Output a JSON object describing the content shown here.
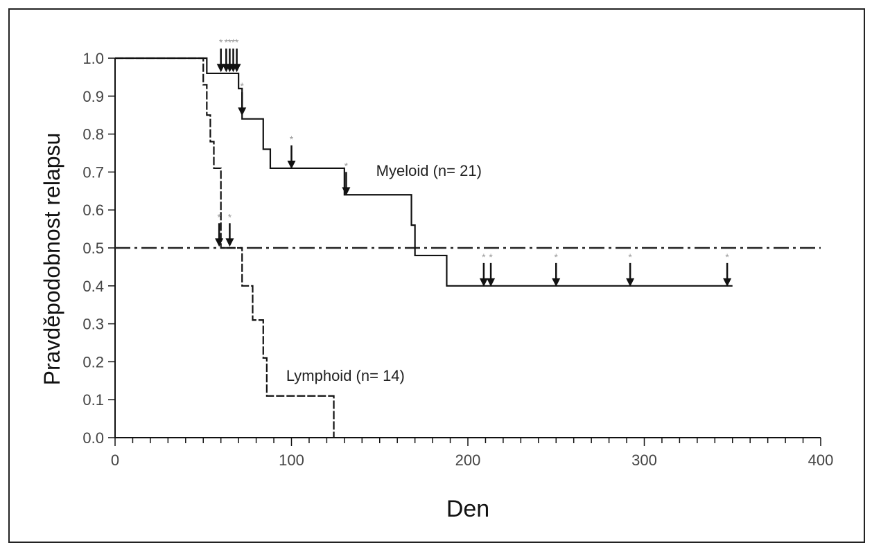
{
  "chart_data": {
    "type": "line",
    "title": "",
    "xlabel": "Den",
    "ylabel": "Pravděpodobnost relapsu",
    "xlim": [
      0,
      400
    ],
    "ylim": [
      0,
      1
    ],
    "xticks": [
      0,
      100,
      200,
      300,
      400
    ],
    "xtick_labels": [
      "0",
      "100",
      "200",
      "300",
      "400"
    ],
    "yticks": [
      0,
      0.1,
      0.2,
      0.3,
      0.4,
      0.5,
      0.6,
      0.7,
      0.8,
      0.9,
      1.0
    ],
    "ytick_labels": [
      "0.0",
      "0.1",
      "0.2",
      "0.3",
      "0.4",
      "0.5",
      "0.6",
      "0.7",
      "0.8",
      "0.9",
      "1.0"
    ],
    "grid": false,
    "reference_line": {
      "y": 0.5,
      "style": "dash-dot"
    },
    "series": [
      {
        "name": "Myeloid (n= 21)",
        "style": "solid",
        "steps": [
          [
            0,
            1.0
          ],
          [
            52,
            0.96
          ],
          [
            70,
            0.92
          ],
          [
            72,
            0.84
          ],
          [
            84,
            0.76
          ],
          [
            88,
            0.71
          ],
          [
            130,
            0.64
          ],
          [
            168,
            0.56
          ],
          [
            170,
            0.48
          ],
          [
            188,
            0.4
          ],
          [
            350,
            0.4
          ]
        ],
        "censored": [
          {
            "x": 60,
            "y": 0.985
          },
          {
            "x": 63,
            "y": 0.985
          },
          {
            "x": 65,
            "y": 0.985
          },
          {
            "x": 67,
            "y": 0.985
          },
          {
            "x": 69,
            "y": 0.985
          },
          {
            "x": 72,
            "y": 0.87
          },
          {
            "x": 100,
            "y": 0.73
          },
          {
            "x": 131,
            "y": 0.66
          },
          {
            "x": 209,
            "y": 0.42
          },
          {
            "x": 213,
            "y": 0.42
          },
          {
            "x": 250,
            "y": 0.42
          },
          {
            "x": 292,
            "y": 0.42
          },
          {
            "x": 347,
            "y": 0.42
          }
        ]
      },
      {
        "name": "Lymphoid (n= 14)",
        "style": "dashed",
        "steps": [
          [
            0,
            1.0
          ],
          [
            50,
            0.93
          ],
          [
            52,
            0.85
          ],
          [
            54,
            0.78
          ],
          [
            56,
            0.71
          ],
          [
            60,
            0.5
          ],
          [
            72,
            0.4
          ],
          [
            78,
            0.31
          ],
          [
            84,
            0.21
          ],
          [
            86,
            0.11
          ],
          [
            124,
            0.0
          ]
        ],
        "censored": [
          {
            "x": 59,
            "y": 0.525
          },
          {
            "x": 65,
            "y": 0.525
          }
        ]
      }
    ],
    "annotations": [
      {
        "text": "Myeloid (n= 21)",
        "x": 148,
        "y": 0.69
      },
      {
        "text": "Lymphoid (n= 14)",
        "x": 97,
        "y": 0.15
      }
    ]
  }
}
